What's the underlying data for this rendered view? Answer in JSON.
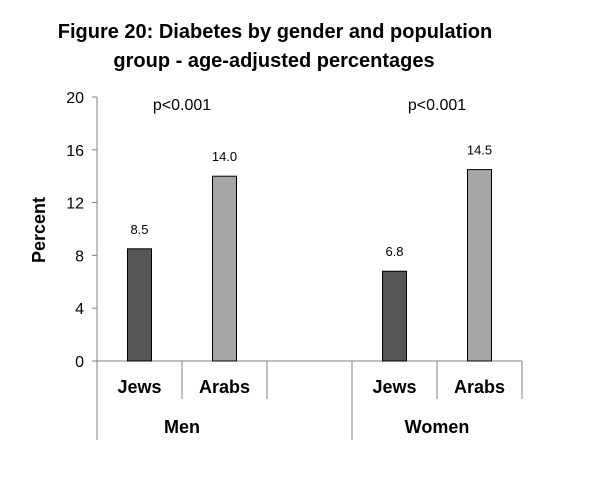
{
  "chart_data": {
    "type": "bar",
    "title_line1": "Figure 20: Diabetes by gender and population",
    "title_line2": "group - age-adjusted percentages",
    "ylabel": "Percent",
    "ylim": [
      0,
      20
    ],
    "yticks": [
      "0",
      "4",
      "8",
      "12",
      "16",
      "20"
    ],
    "groups": [
      {
        "name": "Men",
        "annotation": "p<0.001",
        "bars": [
          {
            "category": "Jews",
            "value": 8.5,
            "label": "8.5",
            "color": "#555555"
          },
          {
            "category": "Arabs",
            "value": 14.0,
            "label": "14.0",
            "color": "#a6a6a6"
          }
        ]
      },
      {
        "name": "Women",
        "annotation": "p<0.001",
        "bars": [
          {
            "category": "Jews",
            "value": 6.8,
            "label": "6.8",
            "color": "#555555"
          },
          {
            "category": "Arabs",
            "value": 14.5,
            "label": "14.5",
            "color": "#a6a6a6"
          }
        ]
      }
    ],
    "grid": false,
    "legend": "none"
  }
}
